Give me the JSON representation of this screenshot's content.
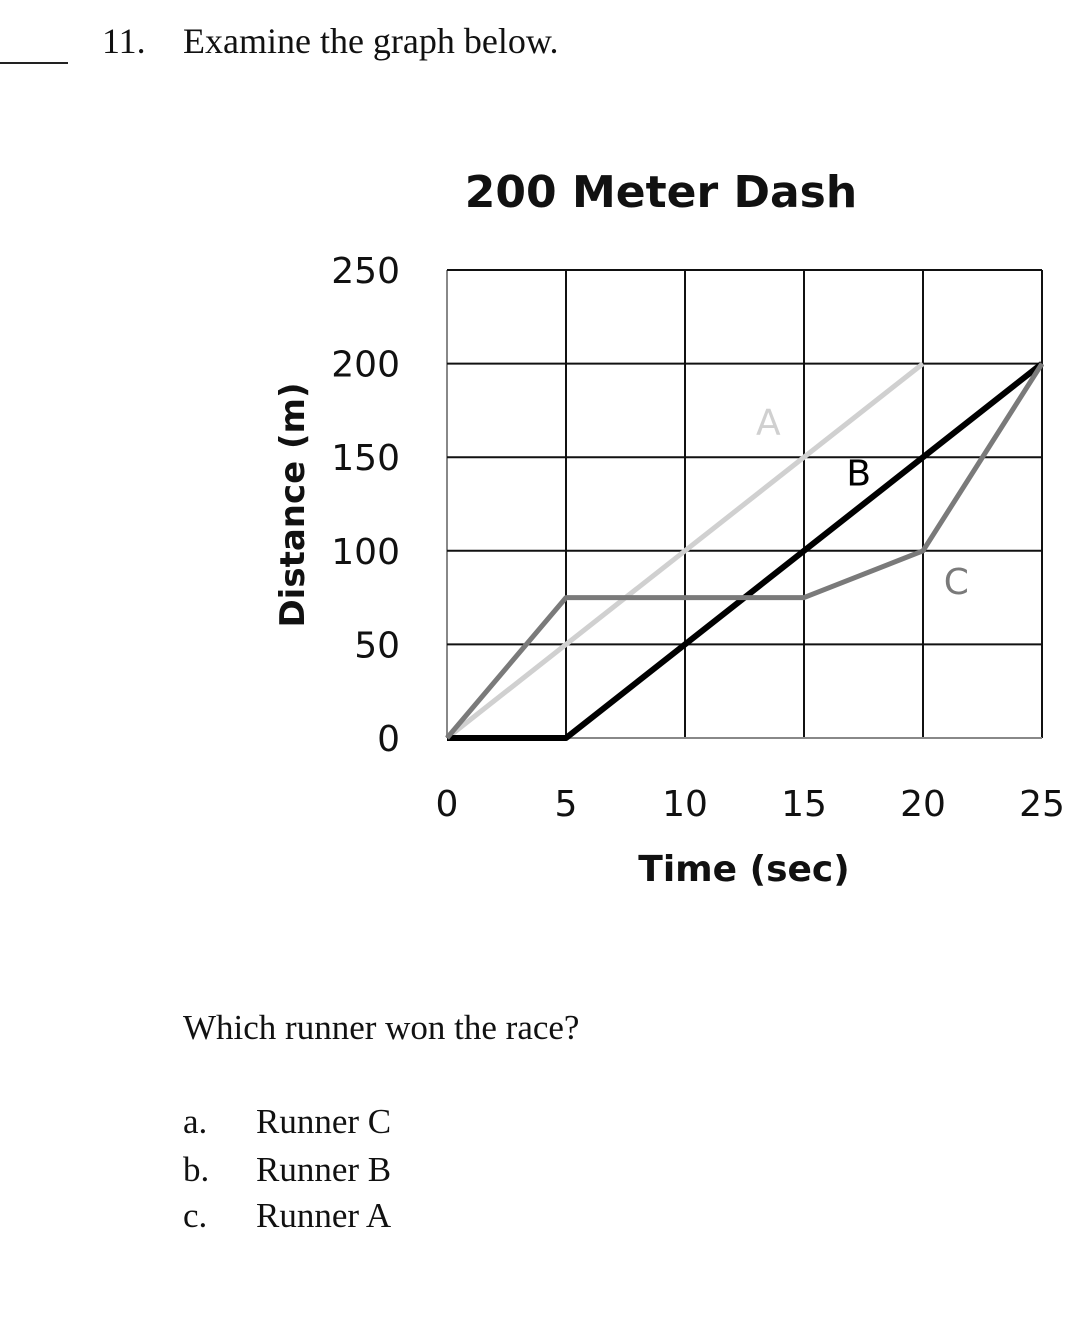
{
  "question": {
    "number": "11.",
    "instruction": "Examine the graph below.",
    "prompt": "Which runner won the race?",
    "options": [
      {
        "letter": "a.",
        "text": "Runner C"
      },
      {
        "letter": "b.",
        "text": "Runner B"
      },
      {
        "letter": "c.",
        "text": "Runner A"
      }
    ]
  },
  "chart_data": {
    "type": "line",
    "title": "200 Meter Dash",
    "xlabel": "Time (sec)",
    "ylabel": "Distance (m)",
    "xlim": [
      0,
      25
    ],
    "ylim": [
      0,
      250
    ],
    "xticks": [
      "0",
      "5",
      "10",
      "15",
      "20",
      "25"
    ],
    "yticks": [
      "0",
      "50",
      "100",
      "150",
      "200",
      "250"
    ],
    "grid": true,
    "series": [
      {
        "name": "A",
        "color": "#d0d0d0",
        "points": [
          [
            0,
            0
          ],
          [
            20,
            200
          ]
        ]
      },
      {
        "name": "B",
        "color": "#000000",
        "points": [
          [
            0,
            0
          ],
          [
            5,
            0
          ],
          [
            25,
            200
          ]
        ]
      },
      {
        "name": "C",
        "color": "#7a7a7a",
        "points": [
          [
            0,
            0
          ],
          [
            5,
            75
          ],
          [
            15,
            75
          ],
          [
            20,
            100
          ],
          [
            25,
            200
          ]
        ]
      }
    ],
    "annotations": [
      {
        "text": "A",
        "x": 13.5,
        "y": 162
      },
      {
        "text": "B",
        "x": 17.3,
        "y": 135
      },
      {
        "text": "C",
        "x": 21.4,
        "y": 77
      }
    ]
  }
}
